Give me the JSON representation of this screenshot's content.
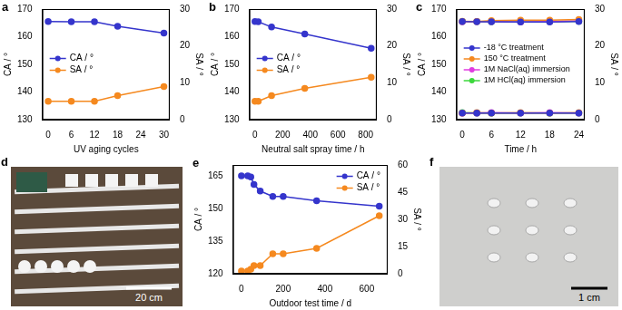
{
  "chart_data": [
    {
      "panel": "a",
      "type": "line",
      "x_label": "UV aging cycles",
      "y_label": "CA / °",
      "y2_label": "SA / °",
      "x": [
        0,
        6,
        12,
        18,
        30
      ],
      "xlim": [
        -1.5,
        31.5
      ],
      "xticks": [
        0,
        6,
        12,
        18,
        24,
        30
      ],
      "ylim": [
        130,
        170
      ],
      "yticks": [
        130,
        140,
        150,
        160,
        170
      ],
      "y2lim": [
        0,
        30
      ],
      "y2ticks": [
        0,
        10,
        20,
        30
      ],
      "grid": false,
      "legend": "center left",
      "marker": "circle",
      "line_style": "solid",
      "series": [
        {
          "name": "CA / °",
          "color": "#3535cc",
          "values": [
            165.5,
            165.4,
            165.4,
            163.8,
            161.3
          ]
        },
        {
          "name": "SA / °",
          "color": "#f5891f",
          "axis": "y2",
          "values": [
            5,
            5,
            5,
            6.5,
            9
          ]
        }
      ]
    },
    {
      "panel": "b",
      "type": "line",
      "x_label": "Neutral salt spray time / h",
      "y_label": "CA / °",
      "y2_label": "SA / °",
      "x": [
        0,
        24,
        120,
        360,
        840
      ],
      "xlim": [
        -40,
        880
      ],
      "xticks": [
        0,
        200,
        400,
        600,
        800
      ],
      "ylim": [
        130,
        170
      ],
      "yticks": [
        130,
        140,
        150,
        160,
        170
      ],
      "y2lim": [
        0,
        30
      ],
      "y2ticks": [
        0,
        10,
        20,
        30
      ],
      "grid": false,
      "legend": "center left",
      "marker": "circle",
      "line_style": "solid",
      "series": [
        {
          "name": "CA / °",
          "color": "#3535cc",
          "values": [
            165.5,
            165.4,
            163.5,
            161,
            155.8
          ]
        },
        {
          "name": "SA / °",
          "color": "#f5891f",
          "axis": "y2",
          "values": [
            5,
            5,
            6.5,
            8.5,
            11.5
          ]
        }
      ]
    },
    {
      "panel": "c",
      "type": "line",
      "x_label": "Time / h",
      "y_label": "CA / °",
      "y2_label": "SA / °",
      "x": [
        0,
        3,
        6,
        12,
        18,
        24
      ],
      "xlim": [
        -1.2,
        25.2
      ],
      "xticks": [
        0,
        6,
        12,
        18,
        24
      ],
      "ylim": [
        130,
        170
      ],
      "yticks": [
        130,
        140,
        150,
        160,
        170
      ],
      "y2lim": [
        0,
        30
      ],
      "y2ticks": [
        0,
        10,
        20,
        30
      ],
      "grid": false,
      "legend": "center left",
      "marker": "circle",
      "line_style": "solid",
      "series": [
        {
          "name": "-18 °C treatment",
          "color": "#3535cc",
          "values": [
            165.5,
            165.4,
            165.4,
            165.3,
            165.3,
            165.5
          ]
        },
        {
          "name": "150 °C treatment",
          "color": "#f5891f",
          "values": [
            165.6,
            165.5,
            165.8,
            166,
            166,
            166.2
          ]
        },
        {
          "name": "1M NaCl(aq) immersion",
          "color": "#e03ce0",
          "values": [
            165.4,
            165.5,
            165.5,
            165.3,
            165.5,
            165.7
          ]
        },
        {
          "name": "1M HCl(aq) immersion",
          "color": "#3cd83c",
          "values": [
            165.5,
            165.5,
            165.4,
            165.4,
            165.5,
            165.6
          ]
        },
        {
          "name": "-18 °C treatment",
          "color": "#3535cc",
          "axis": "y2",
          "values": [
            1.8,
            1.8,
            1.8,
            1.8,
            1.8,
            1.8
          ]
        },
        {
          "name": "150 °C treatment",
          "color": "#f5891f",
          "axis": "y2",
          "values": [
            1.8,
            1.9,
            1.8,
            1.9,
            1.8,
            1.9
          ]
        },
        {
          "name": "1M NaCl(aq) immersion",
          "color": "#e03ce0",
          "axis": "y2",
          "values": [
            1.8,
            1.8,
            1.9,
            1.8,
            1.9,
            1.8
          ]
        },
        {
          "name": "1M HCl(aq) immersion",
          "color": "#3cd83c",
          "axis": "y2",
          "values": [
            1.9,
            1.8,
            1.8,
            1.8,
            1.8,
            1.8
          ]
        }
      ]
    },
    {
      "panel": "e",
      "type": "line",
      "x_label": "Outdoor test time / d",
      "y_label": "CA / °",
      "y2_label": "SA / °",
      "x": [
        0,
        30,
        45,
        60,
        90,
        150,
        200,
        360,
        660
      ],
      "xlim": [
        -40,
        700
      ],
      "xticks": [
        0,
        200,
        400,
        600
      ],
      "ylim": [
        120,
        170
      ],
      "yticks": [
        120,
        135,
        150,
        165
      ],
      "y2lim": [
        0,
        60
      ],
      "y2ticks": [
        0,
        15,
        30,
        45,
        60
      ],
      "grid": false,
      "legend": "top right",
      "marker": "circle",
      "line_style": "solid",
      "series": [
        {
          "name": "CA / °",
          "color": "#3535cc",
          "values": [
            165,
            165,
            164.5,
            161,
            158,
            155.5,
            155.5,
            153.5,
            151
          ]
        },
        {
          "name": "SA / °",
          "color": "#f5891f",
          "axis": "y2",
          "values": [
            1.5,
            1.5,
            2.5,
            4.5,
            4.5,
            11,
            11,
            14,
            32
          ]
        }
      ]
    }
  ],
  "photos": [
    {
      "panel": "d",
      "scale_bar": "20 cm"
    },
    {
      "panel": "f",
      "scale_bar": "1 cm"
    }
  ]
}
